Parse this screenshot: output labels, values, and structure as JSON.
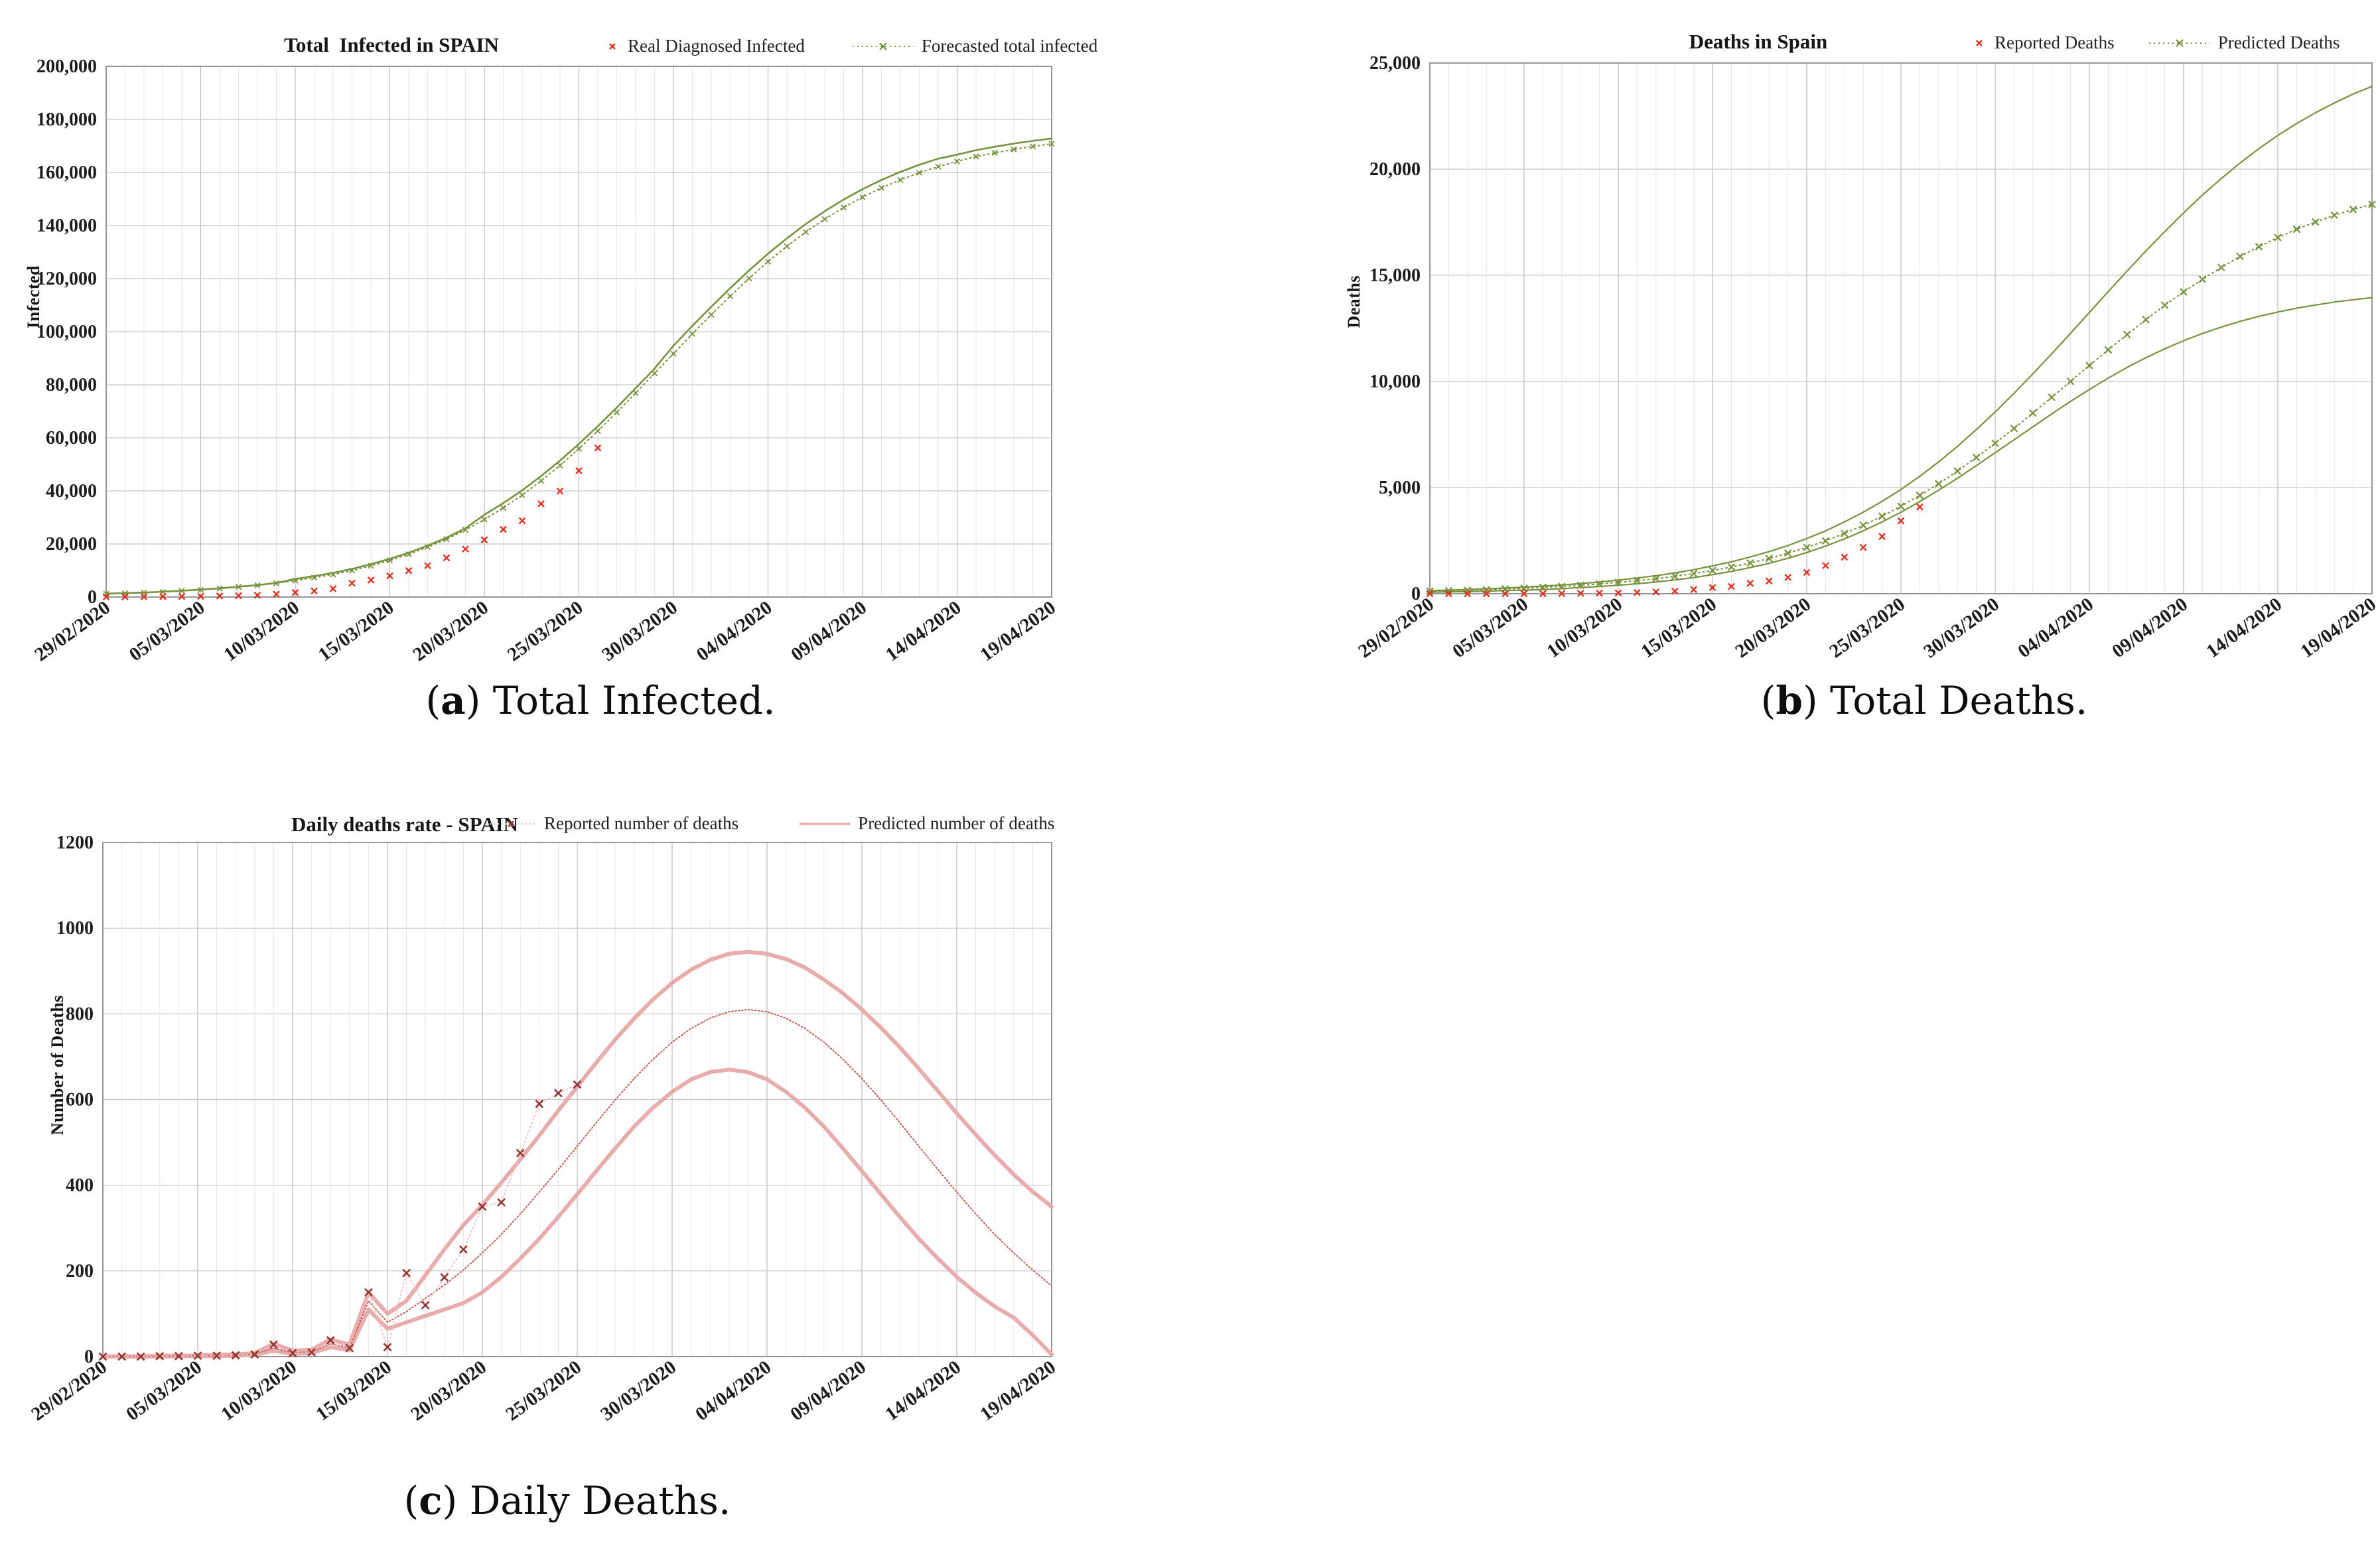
{
  "page": {
    "background": "#ffffff"
  },
  "colors": {
    "forecast_green": "#76923C",
    "reported_red": "#E0301E",
    "band_pink": "#E8ACAC",
    "central_dark_red": "#C0504D",
    "marker_maroon": "#943634",
    "grid_minor": "#E6E6E6",
    "grid_major": "#ADADAD",
    "grid_horizontal": "#C6C6C6",
    "plot_border": "#969696"
  },
  "chart_data": [
    {
      "type": "line",
      "title": "Total  Infected in SPAIN",
      "ylabel": "Infected",
      "caption": {
        "label": "a",
        "text": "Total Infected."
      },
      "legend": [
        {
          "label": "Real Diagnosed Infected",
          "symbol": "red-x"
        },
        {
          "label": "Forecasted total infected",
          "symbol": "green-dotted-x"
        }
      ],
      "ylim": [
        0,
        200000
      ],
      "y_ticks": [
        {
          "v": 0,
          "label": "0"
        },
        {
          "v": 20000,
          "label": "20,000"
        },
        {
          "v": 40000,
          "label": "40,000"
        },
        {
          "v": 60000,
          "label": "60,000"
        },
        {
          "v": 80000,
          "label": "80,000"
        },
        {
          "v": 100000,
          "label": "100,000"
        },
        {
          "v": 120000,
          "label": "120,000"
        },
        {
          "v": 140000,
          "label": "140,000"
        },
        {
          "v": 160000,
          "label": "160,000"
        },
        {
          "v": 180000,
          "label": "180,000"
        },
        {
          "v": 200000,
          "label": "200,000"
        }
      ],
      "x_tick_labels": [
        "29/02/2020",
        "05/03/2020",
        "10/03/2020",
        "15/03/2020",
        "20/03/2020",
        "25/03/2020",
        "30/03/2020",
        "04/04/2020",
        "09/04/2020",
        "14/04/2020",
        "19/04/2020"
      ],
      "series": [
        {
          "name": "forecast-upper-bound",
          "color": "#76923C",
          "line": "solid",
          "width": 2.6,
          "data": [
            1300,
            1500,
            1700,
            2000,
            2400,
            2800,
            3300,
            3900,
            4500,
            5300,
            6800,
            7900,
            9100,
            10600,
            12400,
            14400,
            16700,
            19400,
            22400,
            25900,
            31000,
            35400,
            40200,
            45600,
            51400,
            57700,
            64400,
            71400,
            78700,
            86100,
            94700,
            102200,
            109400,
            116400,
            123100,
            129400,
            135200,
            140600,
            145400,
            149800,
            153700,
            157200,
            160200,
            162900,
            165200,
            166700,
            168400,
            169700,
            170900,
            171900,
            172800
          ]
        },
        {
          "name": "forecasted-total-infected",
          "color": "#76923C",
          "line": "dash",
          "dash": "2,5",
          "width": 2,
          "marker": true,
          "msize": 4,
          "mwidth": 1.8,
          "data": [
            1200,
            1400,
            1600,
            1900,
            2300,
            2700,
            3200,
            3800,
            4400,
            5200,
            6200,
            7300,
            8500,
            10000,
            11800,
            13800,
            16100,
            18800,
            21800,
            25300,
            29200,
            33600,
            38400,
            43800,
            49600,
            55900,
            62600,
            69600,
            76900,
            84300,
            91700,
            99200,
            106400,
            113400,
            120100,
            126400,
            132200,
            137600,
            142400,
            146800,
            150700,
            154200,
            157200,
            159900,
            162200,
            164200,
            166000,
            167400,
            168700,
            169800,
            170800
          ]
        },
        {
          "name": "real-diagnosed-infected",
          "color": "#E0301E",
          "line": "none",
          "marker": true,
          "msize": 4.5,
          "mwidth": 2.4,
          "data": [
            45,
            84,
            120,
            165,
            222,
            259,
            400,
            500,
            673,
            1073,
            1695,
            2277,
            3146,
            5232,
            6391,
            7988,
            9942,
            11826,
            14769,
            18077,
            21571,
            25496,
            28768,
            35136,
            39885,
            47610,
            56188
          ]
        }
      ]
    },
    {
      "type": "line",
      "title": "Deaths in Spain",
      "ylabel": "Deaths",
      "caption": {
        "label": "b",
        "text": "Total Deaths."
      },
      "legend": [
        {
          "label": "Reported Deaths",
          "symbol": "red-x"
        },
        {
          "label": "Predicted Deaths",
          "symbol": "green-dotted-x"
        }
      ],
      "ylim": [
        0,
        25000
      ],
      "y_ticks": [
        {
          "v": 0,
          "label": "0"
        },
        {
          "v": 5000,
          "label": "5,000"
        },
        {
          "v": 10000,
          "label": "10,000"
        },
        {
          "v": 15000,
          "label": "15,000"
        },
        {
          "v": 20000,
          "label": "20,000"
        },
        {
          "v": 25000,
          "label": "25,000"
        }
      ],
      "x_tick_labels": [
        "29/02/2020",
        "05/03/2020",
        "10/03/2020",
        "15/03/2020",
        "20/03/2020",
        "25/03/2020",
        "30/03/2020",
        "04/04/2020",
        "09/04/2020",
        "14/04/2020",
        "19/04/2020"
      ],
      "series": [
        {
          "name": "predicted-deaths-upper-bound",
          "color": "#76923C",
          "line": "solid",
          "width": 2.2,
          "data": [
            150,
            170,
            200,
            230,
            270,
            310,
            360,
            410,
            480,
            550,
            640,
            740,
            850,
            980,
            1130,
            1310,
            1500,
            1730,
            1980,
            2270,
            2600,
            2960,
            3380,
            3840,
            4350,
            4910,
            5530,
            6210,
            6940,
            7730,
            8560,
            9440,
            10360,
            11300,
            12270,
            13250,
            14230,
            15200,
            16150,
            17060,
            17940,
            18780,
            19560,
            20290,
            20970,
            21590,
            22150,
            22660,
            23120,
            23540,
            23900
          ]
        },
        {
          "name": "predicted-deaths-lower-bound",
          "color": "#76923C",
          "line": "solid",
          "width": 2.2,
          "data": [
            70,
            90,
            100,
            120,
            150,
            170,
            200,
            240,
            290,
            340,
            400,
            470,
            550,
            650,
            760,
            900,
            1050,
            1230,
            1430,
            1670,
            1940,
            2240,
            2580,
            2960,
            3380,
            3840,
            4340,
            4880,
            5440,
            6030,
            6640,
            7250,
            7860,
            8470,
            9060,
            9620,
            10160,
            10660,
            11120,
            11540,
            11920,
            12260,
            12560,
            12830,
            13070,
            13270,
            13450,
            13600,
            13740,
            13850,
            13950
          ]
        },
        {
          "name": "predicted-deaths",
          "color": "#76923C",
          "line": "dash",
          "dash": "2,5",
          "width": 2,
          "marker": true,
          "msize": 5,
          "mwidth": 2.2,
          "data": [
            120,
            140,
            160,
            190,
            220,
            250,
            300,
            340,
            400,
            460,
            530,
            620,
            710,
            820,
            950,
            1090,
            1260,
            1450,
            1660,
            1910,
            2180,
            2490,
            2840,
            3220,
            3650,
            4120,
            4630,
            5180,
            5780,
            6420,
            7090,
            7790,
            8510,
            9250,
            10000,
            10750,
            11490,
            12210,
            12910,
            13590,
            14220,
            14810,
            15370,
            15890,
            16350,
            16780,
            17170,
            17510,
            17830,
            18100,
            18340
          ]
        },
        {
          "name": "reported-deaths",
          "color": "#E0301E",
          "line": "none",
          "marker": true,
          "msize": 4.5,
          "mwidth": 2.4,
          "data": [
            0,
            0,
            0,
            1,
            2,
            3,
            5,
            10,
            17,
            28,
            35,
            54,
            84,
            120,
            195,
            288,
            342,
            491,
            598,
            767,
            1002,
            1326,
            1720,
            2182,
            2696,
            3434,
            4089
          ]
        }
      ]
    },
    {
      "type": "line",
      "title": "Daily deaths rate - SPAIN",
      "ylabel": "Number of Deaths",
      "caption": {
        "label": "c",
        "text": "Daily Deaths."
      },
      "legend": [
        {
          "label": "Reported number of deaths",
          "symbol": "pink-dotted-dark-x"
        },
        {
          "label": "Predicted number of deaths",
          "symbol": "pink-line"
        }
      ],
      "ylim": [
        0,
        1200
      ],
      "y_ticks": [
        {
          "v": 0,
          "label": "0"
        },
        {
          "v": 200,
          "label": "200"
        },
        {
          "v": 400,
          "label": "400"
        },
        {
          "v": 600,
          "label": "600"
        },
        {
          "v": 800,
          "label": "800"
        },
        {
          "v": 1000,
          "label": "1000"
        },
        {
          "v": 1200,
          "label": "1200"
        }
      ],
      "x_tick_labels": [
        "29/02/2020",
        "05/03/2020",
        "10/03/2020",
        "15/03/2020",
        "20/03/2020",
        "25/03/2020",
        "30/03/2020",
        "04/04/2020",
        "09/04/2020",
        "14/04/2020",
        "19/04/2020"
      ],
      "series": [
        {
          "name": "predicted-daily-deaths-upper",
          "color": "#E8ACAC",
          "line": "solid",
          "width": 6,
          "data": [
            1,
            1,
            1,
            2,
            2,
            3,
            4,
            5,
            8,
            30,
            14,
            16,
            40,
            28,
            150,
            100,
            130,
            190,
            250,
            307,
            354,
            406,
            460,
            516,
            574,
            630,
            686,
            740,
            789,
            834,
            872,
            903,
            926,
            940,
            945,
            940,
            928,
            908,
            880,
            848,
            810,
            768,
            722,
            672,
            620,
            568,
            518,
            470,
            425,
            385,
            350
          ]
        },
        {
          "name": "predicted-daily-deaths-lower",
          "color": "#E8ACAC",
          "line": "solid",
          "width": 6,
          "data": [
            0,
            0,
            0,
            0,
            1,
            1,
            1,
            2,
            4,
            14,
            6,
            8,
            22,
            15,
            110,
            65,
            80,
            95,
            110,
            125,
            150,
            186,
            229,
            275,
            326,
            379,
            433,
            486,
            537,
            581,
            618,
            647,
            664,
            670,
            664,
            647,
            618,
            581,
            537,
            486,
            433,
            379,
            326,
            275,
            229,
            186,
            149,
            117,
            91,
            50,
            5
          ]
        },
        {
          "name": "predicted-daily-deaths-central",
          "color": "#C0504D",
          "line": "dash",
          "dash": "2,3",
          "width": 1.8,
          "data": [
            0,
            0,
            0,
            1,
            1,
            2,
            2,
            3,
            6,
            20,
            9,
            11,
            30,
            20,
            130,
            80,
            105,
            136,
            167,
            202,
            242,
            285,
            333,
            384,
            437,
            491,
            546,
            599,
            649,
            694,
            734,
            766,
            790,
            805,
            810,
            805,
            790,
            766,
            734,
            694,
            649,
            599,
            546,
            491,
            437,
            384,
            333,
            285,
            242,
            202,
            165
          ]
        },
        {
          "name": "reported-daily-deaths",
          "color": "#EDBFBF",
          "line": "dash",
          "dash": "2,4",
          "width": 1.8,
          "marker": true,
          "mcolor": "#943634",
          "msize": 5.5,
          "mwidth": 2.6,
          "data": [
            0,
            0,
            0,
            1,
            1,
            2,
            2,
            3,
            5,
            28,
            8,
            10,
            38,
            20,
            150,
            22,
            195,
            120,
            185,
            250,
            350,
            360,
            475,
            590,
            615,
            635
          ]
        }
      ]
    }
  ]
}
